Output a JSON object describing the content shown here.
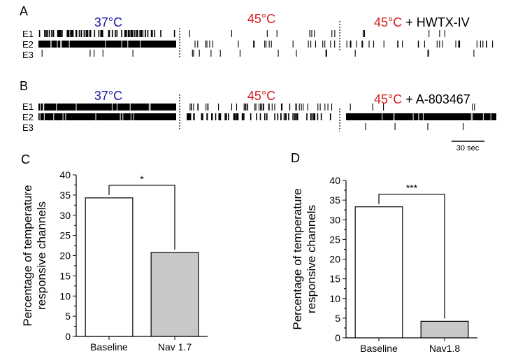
{
  "panels": {
    "A": {
      "letter": "A",
      "rows": [
        "E1",
        "E2",
        "E3"
      ],
      "conditions": [
        {
          "temp": "37°C",
          "temp_color": "#1a1aa6",
          "suffix": ""
        },
        {
          "temp": "45°C",
          "temp_color": "#d42020",
          "suffix": ""
        },
        {
          "temp": "45°C",
          "temp_color": "#d42020",
          "suffix": " + HWTX-IV"
        }
      ],
      "spike_density": [
        [
          0.8,
          0.1,
          0.06
        ],
        [
          0.95,
          0.22,
          0.3
        ],
        [
          0.06,
          0.1,
          0.04
        ]
      ]
    },
    "B": {
      "letter": "B",
      "rows": [
        "E1",
        "E2",
        "E3"
      ],
      "conditions": [
        {
          "temp": "37°C",
          "temp_color": "#1a1aa6",
          "suffix": ""
        },
        {
          "temp": "45°C",
          "temp_color": "#d42020",
          "suffix": ""
        },
        {
          "temp": "45°C",
          "temp_color": "#d42020",
          "suffix": " + A-803467"
        }
      ],
      "spike_density": [
        [
          0.95,
          0.45,
          0.05
        ],
        [
          1.0,
          0.6,
          1.0
        ],
        [
          0.0,
          0.0,
          0.04
        ]
      ]
    },
    "scale_bar_label": "30 sec"
  },
  "chart_data": [
    {
      "type": "bar",
      "panel": "C",
      "categories": [
        "Baseline",
        "Nav 1.7"
      ],
      "values": [
        34.3,
        20.8
      ],
      "ylabel": "Percentage of temperature\nresponsive channels",
      "ylim": [
        0,
        40
      ],
      "yticks": [
        0,
        5,
        10,
        15,
        20,
        25,
        30,
        35,
        40
      ],
      "bar_colors": [
        "#ffffff",
        "#c8c8c8"
      ],
      "significance": "*",
      "grid": false
    },
    {
      "type": "bar",
      "panel": "D",
      "categories": [
        "Baseline",
        "Nav1.8"
      ],
      "values": [
        33.3,
        4.2
      ],
      "ylabel": "Percentage of temperature\nresponsive channels",
      "ylim": [
        0,
        40
      ],
      "yticks": [
        0,
        5,
        10,
        15,
        20,
        25,
        30,
        35,
        40
      ],
      "bar_colors": [
        "#ffffff",
        "#c8c8c8"
      ],
      "significance": "***",
      "grid": false
    }
  ]
}
